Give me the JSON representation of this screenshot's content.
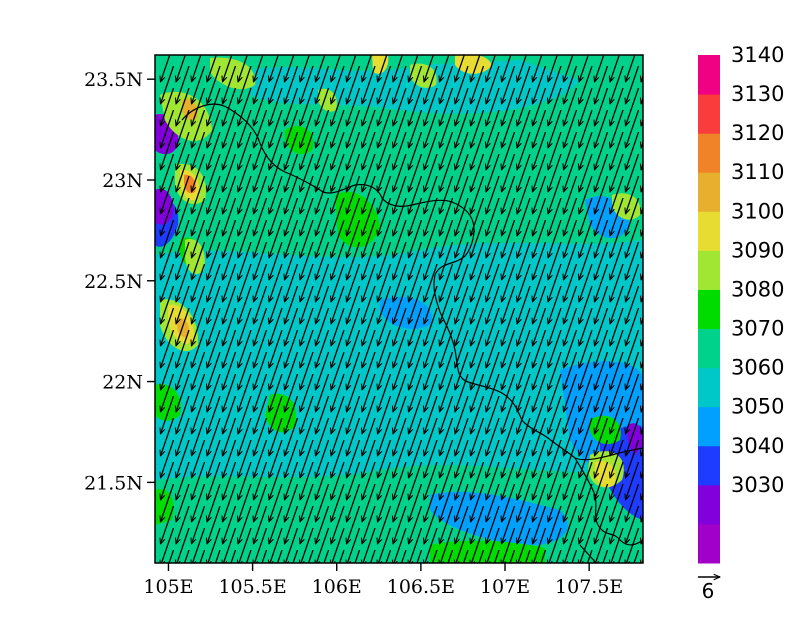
{
  "map": {
    "lat_ticks": [
      {
        "value": 23.5,
        "label": "23.5N"
      },
      {
        "value": 23.0,
        "label": "23N"
      },
      {
        "value": 22.5,
        "label": "22.5N"
      },
      {
        "value": 22.0,
        "label": "22N"
      },
      {
        "value": 21.5,
        "label": "21.5N"
      }
    ],
    "lon_ticks": [
      {
        "value": 105.0,
        "label": "105E"
      },
      {
        "value": 105.5,
        "label": "105.5E"
      },
      {
        "value": 106.0,
        "label": "106E"
      },
      {
        "value": 106.5,
        "label": "106.5E"
      },
      {
        "value": 107.0,
        "label": "107E"
      },
      {
        "value": 107.5,
        "label": "107.5E"
      }
    ],
    "lon_range": [
      104.92,
      107.82
    ],
    "lat_range": [
      21.1,
      23.62
    ],
    "wind_u": -1.9,
    "wind_v": -5.5,
    "colorbar": {
      "bins": [
        {
          "color": "#A000C8",
          "label": ""
        },
        {
          "color": "#8200DC",
          "label": "3030"
        },
        {
          "color": "#1E3CFF",
          "label": "3040"
        },
        {
          "color": "#00A0FF",
          "label": "3050"
        },
        {
          "color": "#00C8C8",
          "label": "3060"
        },
        {
          "color": "#00D28C",
          "label": "3070"
        },
        {
          "color": "#00DC00",
          "label": "3080"
        },
        {
          "color": "#A0E632",
          "label": "3090"
        },
        {
          "color": "#E6DC32",
          "label": "3100"
        },
        {
          "color": "#E6AF2D",
          "label": "3110"
        },
        {
          "color": "#F08228",
          "label": "3120"
        },
        {
          "color": "#FA3C3C",
          "label": "3130"
        },
        {
          "color": "#F00082",
          "label": "3140"
        }
      ]
    },
    "reference_vector": {
      "value": "6"
    }
  }
}
